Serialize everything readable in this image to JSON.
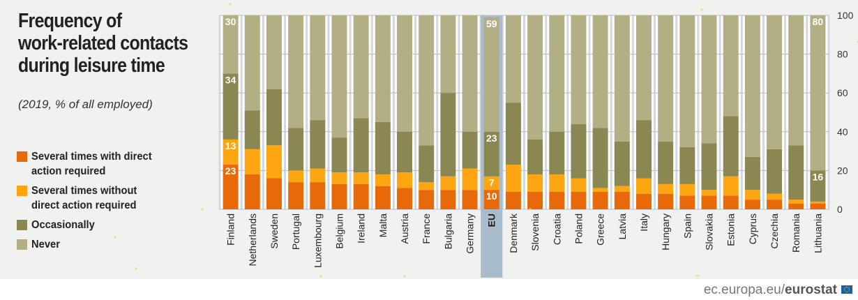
{
  "title_lines": [
    "Frequency of",
    "work-related contacts",
    "during leisure time"
  ],
  "subtitle": "(2019, % of all employed)",
  "footer": {
    "source_plain": "ec.europa.eu/",
    "source_bold": "eurostat"
  },
  "chart_data": {
    "type": "bar",
    "stacked": true,
    "title": "Frequency of work-related contacts during leisure time",
    "subtitle": "(2019, % of all employed)",
    "ylabel": "%",
    "ylim": [
      0,
      100
    ],
    "yticks": [
      0,
      20,
      40,
      60,
      80,
      100
    ],
    "yaxis_side": "right",
    "grid": true,
    "legend_position": "left",
    "highlight": "EU",
    "labeled_categories": [
      "Finland",
      "EU",
      "Lithuania"
    ],
    "categories": [
      "Finland",
      "Netherlands",
      "Sweden",
      "Portugal",
      "Luxembourg",
      "Belgium",
      "Ireland",
      "Malta",
      "Austria",
      "France",
      "Bulgaria",
      "Germany",
      "EU",
      "Denmark",
      "Slovenia",
      "Croatia",
      "Poland",
      "Greece",
      "Latvia",
      "Italy",
      "Hungary",
      "Spain",
      "Slovakia",
      "Estonia",
      "Cyprus",
      "Czechia",
      "Romania",
      "Lithuania"
    ],
    "series": [
      {
        "name": "Several times with direct action required",
        "color": "#e8690a",
        "values": [
          23,
          18,
          16,
          14,
          14,
          13,
          13,
          12,
          11,
          10,
          10,
          10,
          10,
          9,
          9,
          9,
          9,
          9,
          9,
          8,
          8,
          7,
          7,
          7,
          5,
          5,
          3,
          3
        ]
      },
      {
        "name": "Several times without direct action required",
        "color": "#fea512",
        "values": [
          13,
          13,
          17,
          6,
          7,
          6,
          6,
          6,
          8,
          4,
          7,
          11,
          7,
          14,
          9,
          9,
          7,
          2,
          3,
          8,
          5,
          6,
          3,
          10,
          5,
          3,
          2,
          1
        ]
      },
      {
        "name": "Occasionally",
        "color": "#8a8752",
        "values": [
          34,
          20,
          29,
          22,
          25,
          18,
          28,
          27,
          21,
          19,
          43,
          19,
          23,
          32,
          18,
          22,
          28,
          31,
          23,
          30,
          22,
          19,
          24,
          31,
          17,
          23,
          28,
          16
        ]
      },
      {
        "name": "Never",
        "color": "#b3af85",
        "values": [
          30,
          49,
          38,
          58,
          54,
          63,
          53,
          55,
          60,
          67,
          40,
          60,
          59,
          45,
          64,
          60,
          56,
          58,
          65,
          54,
          65,
          68,
          66,
          52,
          73,
          69,
          67,
          80
        ]
      }
    ]
  }
}
